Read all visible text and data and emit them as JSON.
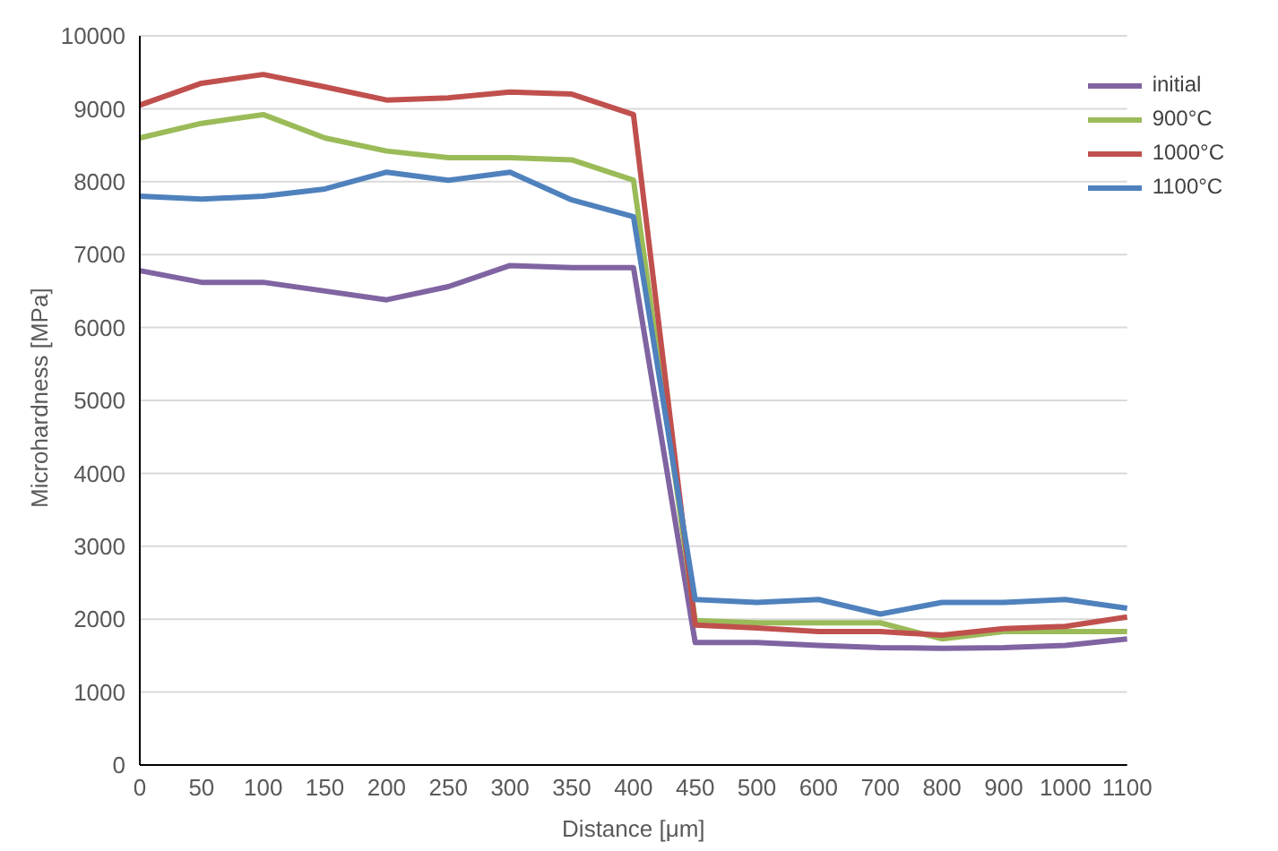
{
  "chart_data": {
    "type": "line",
    "xlabel": "Distance [μm]",
    "ylabel": "Microhardness [MPa]",
    "categories": [
      "0",
      "50",
      "100",
      "150",
      "200",
      "250",
      "300",
      "350",
      "400",
      "450",
      "500",
      "600",
      "700",
      "800",
      "900",
      "1000",
      "1100"
    ],
    "series": [
      {
        "name": "initial",
        "color": "#8064a2",
        "values": [
          6780,
          6620,
          6620,
          6500,
          6380,
          6560,
          6850,
          6820,
          6820,
          1680,
          1680,
          1640,
          1610,
          1600,
          1610,
          1640,
          1730
        ]
      },
      {
        "name": "900°C",
        "color": "#9bbb59",
        "values": [
          8600,
          8800,
          8920,
          8600,
          8420,
          8330,
          8330,
          8300,
          8020,
          1980,
          1950,
          1950,
          1950,
          1730,
          1830,
          1830,
          1830
        ]
      },
      {
        "name": "1000°C",
        "color": "#c0504d",
        "values": [
          9050,
          9350,
          9470,
          9300,
          9120,
          9150,
          9230,
          9200,
          8920,
          1920,
          1880,
          1830,
          1830,
          1780,
          1870,
          1900,
          2030
        ]
      },
      {
        "name": "1100°C",
        "color": "#4f81bd",
        "values": [
          7800,
          7760,
          7800,
          7900,
          8130,
          8020,
          8130,
          7750,
          7520,
          2270,
          2230,
          2270,
          2070,
          2230,
          2230,
          2270,
          2150
        ]
      }
    ],
    "ylim": [
      0,
      10000
    ],
    "yticks": [
      0,
      1000,
      2000,
      3000,
      4000,
      5000,
      6000,
      7000,
      8000,
      9000,
      10000
    ],
    "grid": "y",
    "legend": "top right",
    "marker": "none",
    "line_style": "solid"
  }
}
